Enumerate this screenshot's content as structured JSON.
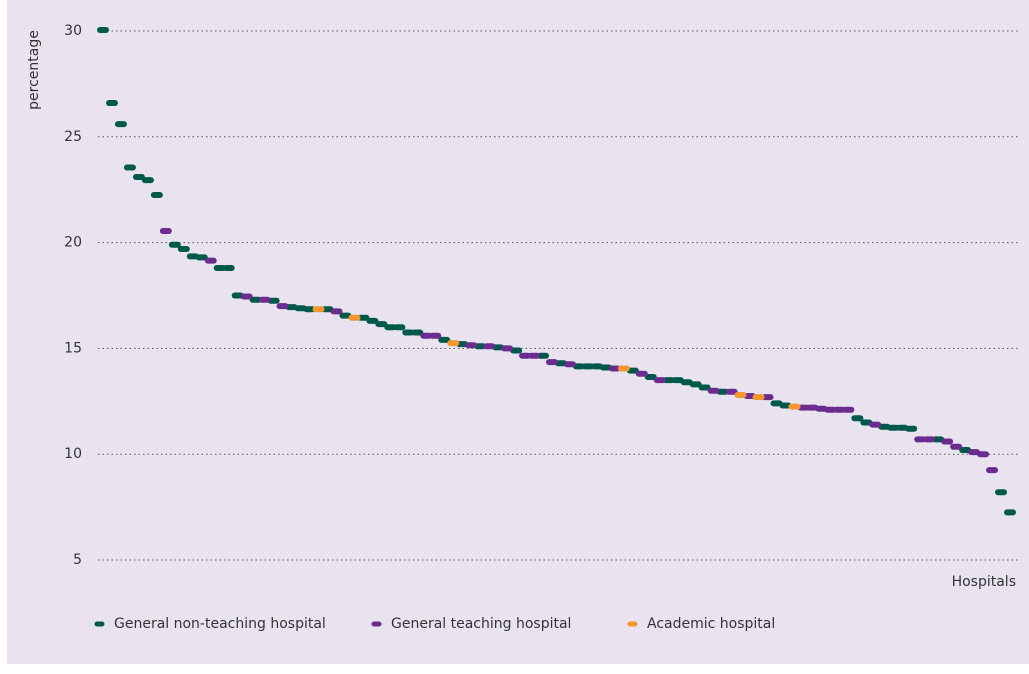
{
  "chart_data": {
    "type": "scatter",
    "y_label": "percentage",
    "x_label": "Hospitals",
    "ylim": [
      5,
      30
    ],
    "yticks": [
      5,
      10,
      15,
      20,
      25,
      30
    ],
    "grid": true,
    "legend": "bottom",
    "series": [
      {
        "name": "General non-teaching hospital",
        "color": "#00594a",
        "values": [
          30.05,
          26.6,
          25.6,
          23.55,
          23.1,
          22.95,
          22.25,
          null,
          19.9,
          19.7,
          19.35,
          19.3,
          null,
          18.8,
          18.8,
          17.5,
          null,
          17.3,
          null,
          17.25,
          null,
          16.95,
          16.9,
          16.85,
          null,
          16.85,
          null,
          16.55,
          null,
          16.45,
          16.3,
          16.15,
          16.0,
          16.0,
          15.75,
          15.75,
          null,
          null,
          15.4,
          null,
          15.2,
          null,
          15.1,
          null,
          15.05,
          null,
          14.9,
          null,
          null,
          14.65,
          null,
          14.3,
          null,
          14.15,
          14.15,
          14.15,
          14.1,
          null,
          null,
          13.95,
          null,
          13.65,
          null,
          13.5,
          13.5,
          13.4,
          13.3,
          13.15,
          null,
          12.95,
          null,
          null,
          null,
          null,
          null,
          12.4,
          12.3,
          null,
          null,
          null,
          null,
          null,
          null,
          null,
          11.7,
          11.5,
          null,
          11.3,
          11.25,
          11.25,
          11.2,
          null,
          null,
          10.7,
          null,
          null,
          10.2,
          null,
          null,
          null,
          8.2,
          7.25
        ]
      },
      {
        "name": "General teaching hospital",
        "color": "#6a2c8e",
        "values": [
          null,
          null,
          null,
          null,
          null,
          null,
          null,
          20.55,
          null,
          null,
          null,
          null,
          19.15,
          null,
          null,
          null,
          17.45,
          null,
          17.3,
          null,
          17.0,
          null,
          null,
          null,
          null,
          null,
          16.75,
          null,
          null,
          null,
          null,
          null,
          null,
          null,
          null,
          null,
          15.6,
          15.6,
          null,
          null,
          null,
          15.15,
          null,
          15.1,
          null,
          15.0,
          null,
          14.65,
          14.65,
          null,
          14.35,
          null,
          14.25,
          null,
          null,
          null,
          null,
          14.05,
          null,
          null,
          13.8,
          null,
          13.5,
          null,
          null,
          null,
          null,
          null,
          13.0,
          null,
          12.95,
          null,
          12.75,
          null,
          12.7,
          null,
          null,
          null,
          12.2,
          12.2,
          12.15,
          12.1,
          12.1,
          12.1,
          null,
          null,
          11.4,
          null,
          null,
          null,
          null,
          10.7,
          10.7,
          null,
          10.6,
          10.35,
          null,
          10.1,
          10.0,
          9.25,
          null,
          null
        ]
      },
      {
        "name": "Academic hospital",
        "color": "#f3962f",
        "values": [
          null,
          null,
          null,
          null,
          null,
          null,
          null,
          null,
          null,
          null,
          null,
          null,
          null,
          null,
          null,
          null,
          null,
          null,
          null,
          null,
          null,
          null,
          null,
          null,
          16.85,
          null,
          null,
          null,
          16.45,
          null,
          null,
          null,
          null,
          null,
          null,
          null,
          null,
          null,
          null,
          15.25,
          null,
          null,
          null,
          null,
          null,
          null,
          null,
          null,
          null,
          null,
          null,
          null,
          null,
          null,
          null,
          null,
          null,
          null,
          14.05,
          null,
          null,
          null,
          null,
          null,
          null,
          null,
          null,
          null,
          null,
          null,
          null,
          12.8,
          null,
          12.7,
          null,
          null,
          null,
          12.25,
          null,
          null,
          null,
          null,
          null,
          null,
          null,
          null,
          null,
          null,
          null,
          null,
          null,
          null,
          null,
          null,
          null,
          null,
          null,
          null,
          null,
          null,
          null,
          null
        ]
      }
    ]
  }
}
